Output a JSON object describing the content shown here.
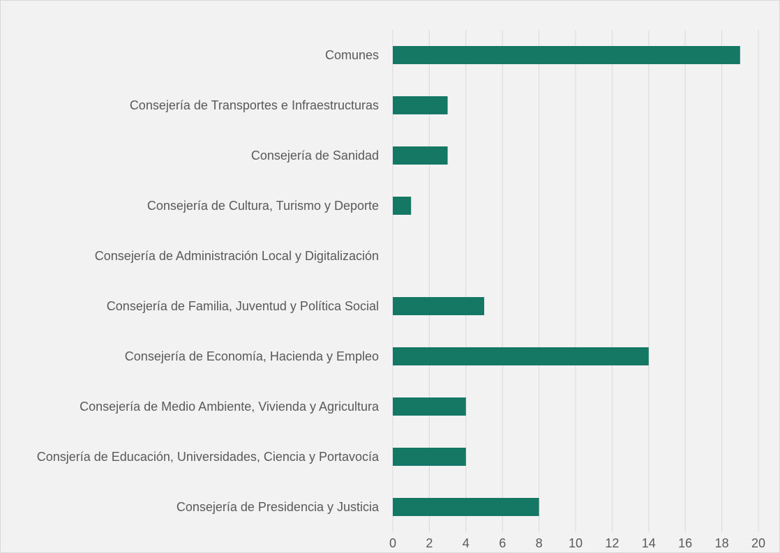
{
  "chart_data": {
    "type": "barh",
    "categories": [
      "Comunes",
      "Consejería de Transportes e Infraestructuras",
      "Consejería de Sanidad",
      "Consejería de Cultura, Turismo y Deporte",
      "Consejería de Administración Local y Digitalización",
      "Consejería de Familia, Juventud y Política Social",
      "Consejería de Economía, Hacienda y Empleo",
      "Consejería de Medio Ambiente, Vivienda y Agricultura",
      "Consjería de Educación, Universidades, Ciencia y Portavocía",
      "Consejería de Presidencia y Justicia"
    ],
    "values": [
      19,
      3,
      3,
      1,
      0,
      5,
      14,
      4,
      4,
      8
    ],
    "color": "#157864",
    "xlim": [
      0,
      20
    ],
    "xticks": [
      0,
      2,
      4,
      6,
      8,
      10,
      12,
      14,
      16,
      18,
      20
    ],
    "grid": true
  }
}
